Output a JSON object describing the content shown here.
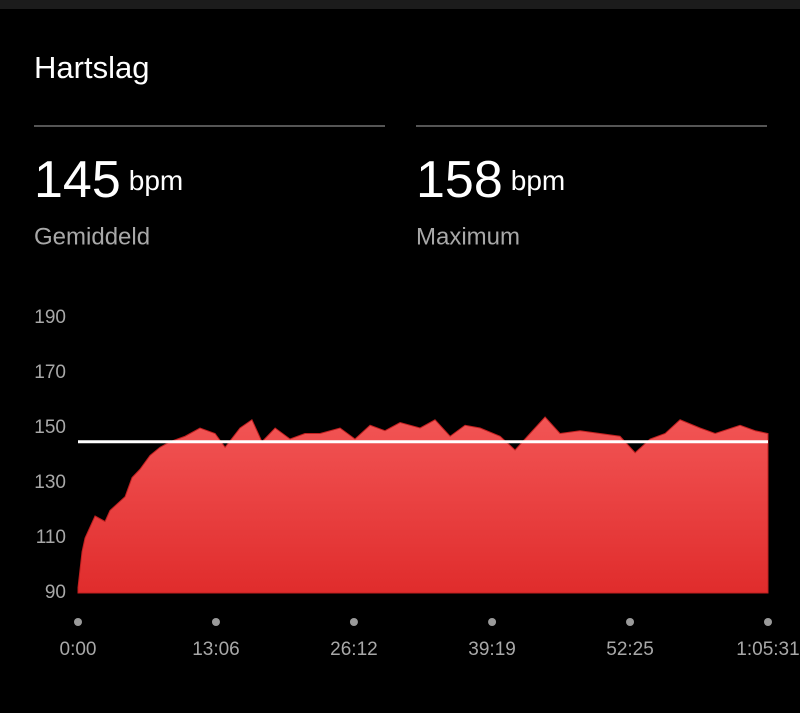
{
  "title": "Hartslag",
  "stats": [
    {
      "value": 145,
      "unit": "bpm",
      "label": "Gemiddeld"
    },
    {
      "value": 158,
      "unit": "bpm",
      "label": "Maximum"
    }
  ],
  "chart_data": {
    "type": "area",
    "color": "#ee4444",
    "x": [
      0,
      23,
      40,
      97,
      154,
      182,
      268,
      308,
      353,
      410,
      467,
      524,
      610,
      695,
      781,
      838,
      923,
      991,
      1048,
      1123,
      1208,
      1293,
      1379,
      1493,
      1578,
      1664,
      1749,
      1835,
      1949,
      2034,
      2120,
      2205,
      2291,
      2405,
      2490,
      2575,
      2661,
      2746,
      2860,
      2974,
      3088,
      3174,
      3259,
      3345,
      3430,
      3544,
      3630,
      3772,
      3858,
      3931
    ],
    "values": [
      92,
      105,
      110,
      118,
      116,
      120,
      125,
      132,
      135,
      140,
      143,
      145,
      147,
      150,
      148,
      143,
      150,
      153,
      145,
      150,
      146,
      148,
      148,
      150,
      146,
      151,
      149,
      152,
      150,
      153,
      147,
      151,
      150,
      147,
      142,
      148,
      154,
      148,
      149,
      148,
      147,
      141,
      146,
      148,
      153,
      150,
      148,
      151,
      149,
      148
    ],
    "xlim": [
      0,
      3931
    ],
    "xticks": [
      {
        "value": 0,
        "label": "0:00"
      },
      {
        "value": 786,
        "label": "13:06"
      },
      {
        "value": 1572,
        "label": "26:12"
      },
      {
        "value": 2359,
        "label": "39:19"
      },
      {
        "value": 3145,
        "label": "52:25"
      },
      {
        "value": 3931,
        "label": "1:05:31"
      }
    ],
    "ylim": [
      90,
      190
    ],
    "yticks": [
      90,
      110,
      130,
      150,
      170,
      190
    ]
  }
}
